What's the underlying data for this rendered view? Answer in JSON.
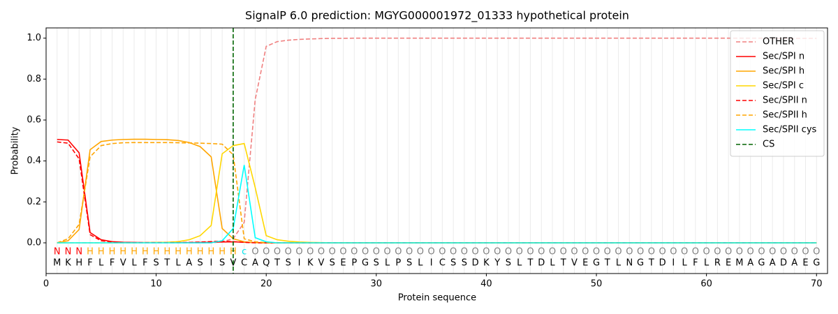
{
  "chart_data": {
    "type": "line",
    "title": "SignalP 6.0 prediction: MGYG000001972_01333 hypothetical protein",
    "x_label": "Protein sequence",
    "y_label": "Probability",
    "xlim": [
      0,
      71
    ],
    "ylim": [
      -0.15,
      1.05
    ],
    "xticks": [
      0,
      10,
      20,
      30,
      40,
      50,
      60,
      70
    ],
    "yticks": [
      {
        "value": 0,
        "label": "0.0"
      },
      {
        "value": 0.2,
        "label": "0.2"
      },
      {
        "value": 0.4,
        "label": "0.4"
      },
      {
        "value": 0.6,
        "label": "0.6"
      },
      {
        "value": 0.8,
        "label": "0.8"
      },
      {
        "value": 1,
        "label": "1.0"
      }
    ],
    "x": [
      1,
      2,
      3,
      4,
      5,
      6,
      7,
      8,
      9,
      10,
      11,
      12,
      13,
      14,
      15,
      16,
      17,
      18,
      19,
      20,
      21,
      22,
      23,
      24,
      25,
      26,
      27,
      28,
      29,
      30,
      31,
      32,
      33,
      34,
      35,
      36,
      37,
      38,
      39,
      40,
      41,
      42,
      43,
      44,
      45,
      46,
      47,
      48,
      49,
      50,
      51,
      52,
      53,
      54,
      55,
      56,
      57,
      58,
      59,
      60,
      61,
      62,
      63,
      64,
      65,
      66,
      67,
      68,
      69,
      70
    ],
    "sequence": [
      "M",
      "K",
      "H",
      "F",
      "L",
      "F",
      "V",
      "L",
      "F",
      "S",
      "T",
      "L",
      "A",
      "S",
      "I",
      "S",
      "V",
      "C",
      "A",
      "Q",
      "T",
      "S",
      "I",
      "K",
      "V",
      "S",
      "E",
      "P",
      "G",
      "S",
      "L",
      "P",
      "S",
      "L",
      "I",
      "C",
      "S",
      "S",
      "D",
      "K",
      "Y",
      "S",
      "L",
      "T",
      "D",
      "L",
      "T",
      "V",
      "E",
      "G",
      "T",
      "L",
      "N",
      "G",
      "T",
      "D",
      "I",
      "L",
      "F",
      "L",
      "R",
      "E",
      "M",
      "A",
      "G",
      "A",
      "D",
      "A",
      "E",
      "G"
    ],
    "annotations": [
      "N",
      "N",
      "N",
      "H",
      "H",
      "H",
      "H",
      "H",
      "H",
      "H",
      "H",
      "H",
      "H",
      "H",
      "H",
      "H",
      "H",
      "c",
      "O",
      "O",
      "O",
      "O",
      "O",
      "O",
      "O",
      "O",
      "O",
      "O",
      "O",
      "O",
      "O",
      "O",
      "O",
      "O",
      "O",
      "O",
      "O",
      "O",
      "O",
      "O",
      "O",
      "O",
      "O",
      "O",
      "O",
      "O",
      "O",
      "O",
      "O",
      "O",
      "O",
      "O",
      "O",
      "O",
      "O",
      "O",
      "O",
      "O",
      "O",
      "O",
      "O",
      "O",
      "O",
      "O",
      "O",
      "O",
      "O",
      "O",
      "O",
      "O"
    ],
    "annotation_colors": {
      "N": "#ff0000",
      "H": "#ffa500",
      "c": "#00e5ee",
      "O": "#808080"
    },
    "position_grid": true,
    "legend": "upper right",
    "series": [
      {
        "name": "OTHER",
        "color": "#f08080",
        "dashed": true,
        "values": [
          0,
          0,
          0,
          0,
          0,
          0,
          0,
          0,
          0,
          0,
          0,
          0,
          0,
          0,
          0,
          0.005,
          0.02,
          0.1,
          0.7,
          0.96,
          0.983,
          0.99,
          0.994,
          0.996,
          0.998,
          0.999,
          0.999,
          1,
          1,
          1,
          1,
          1,
          1,
          1,
          1,
          1,
          1,
          1,
          1,
          1,
          1,
          1,
          1,
          1,
          1,
          1,
          1,
          1,
          1,
          1,
          1,
          1,
          1,
          1,
          1,
          1,
          1,
          1,
          1,
          1,
          1,
          1,
          1,
          1,
          1,
          1,
          0.999,
          0.999,
          0.999,
          0.999
        ]
      },
      {
        "name": "Sec/SPI n",
        "color": "#ff0000",
        "dashed": false,
        "values": [
          0.505,
          0.502,
          0.44,
          0.05,
          0.015,
          0.006,
          0.003,
          0.002,
          0.001,
          0.001,
          0.001,
          0.001,
          0.001,
          0.002,
          0.003,
          0.004,
          0.005,
          0.003,
          0.001,
          0,
          0,
          0,
          0,
          0,
          0,
          0,
          0,
          0,
          0,
          0,
          0,
          0,
          0,
          0,
          0,
          0,
          0,
          0,
          0,
          0,
          0,
          0,
          0,
          0,
          0,
          0,
          0,
          0,
          0,
          0,
          0,
          0,
          0,
          0,
          0,
          0,
          0,
          0,
          0,
          0,
          0,
          0,
          0,
          0,
          0,
          0,
          0,
          0,
          0,
          0
        ]
      },
      {
        "name": "Sec/SPI h",
        "color": "#ffa500",
        "dashed": false,
        "values": [
          0,
          0.01,
          0.065,
          0.455,
          0.495,
          0.502,
          0.505,
          0.506,
          0.506,
          0.505,
          0.504,
          0.5,
          0.49,
          0.47,
          0.42,
          0.07,
          0.02,
          0.005,
          0.001,
          0,
          0,
          0,
          0,
          0,
          0,
          0,
          0,
          0,
          0,
          0,
          0,
          0,
          0,
          0,
          0,
          0,
          0,
          0,
          0,
          0,
          0,
          0,
          0,
          0,
          0,
          0,
          0,
          0,
          0,
          0,
          0,
          0,
          0,
          0,
          0,
          0,
          0,
          0,
          0,
          0,
          0,
          0,
          0,
          0,
          0,
          0,
          0,
          0,
          0,
          0
        ]
      },
      {
        "name": "Sec/SPI c",
        "color": "#ffd700",
        "dashed": false,
        "values": [
          0,
          0,
          0,
          0,
          0,
          0,
          0,
          0,
          0.001,
          0.002,
          0.003,
          0.006,
          0.015,
          0.035,
          0.085,
          0.435,
          0.475,
          0.485,
          0.27,
          0.035,
          0.015,
          0.008,
          0.004,
          0.002,
          0.001,
          0,
          0,
          0,
          0,
          0,
          0,
          0,
          0,
          0,
          0,
          0,
          0,
          0,
          0,
          0,
          0,
          0,
          0,
          0,
          0,
          0,
          0,
          0,
          0,
          0,
          0,
          0,
          0,
          0,
          0,
          0,
          0,
          0,
          0,
          0,
          0,
          0,
          0,
          0,
          0,
          0,
          0,
          0,
          0,
          0
        ]
      },
      {
        "name": "Sec/SPII n",
        "color": "#ff0000",
        "dashed": true,
        "values": [
          0.493,
          0.487,
          0.41,
          0.04,
          0.01,
          0.004,
          0.002,
          0.001,
          0.001,
          0.001,
          0.001,
          0.001,
          0.002,
          0.004,
          0.006,
          0.008,
          0.006,
          0.002,
          0,
          0,
          0,
          0,
          0,
          0,
          0,
          0,
          0,
          0,
          0,
          0,
          0,
          0,
          0,
          0,
          0,
          0,
          0,
          0,
          0,
          0,
          0,
          0,
          0,
          0,
          0,
          0,
          0,
          0,
          0,
          0,
          0,
          0,
          0,
          0,
          0,
          0,
          0,
          0,
          0,
          0,
          0,
          0,
          0,
          0,
          0,
          0,
          0,
          0,
          0,
          0
        ]
      },
      {
        "name": "Sec/SPII h",
        "color": "#ffa500",
        "dashed": true,
        "values": [
          0,
          0.02,
          0.09,
          0.42,
          0.475,
          0.485,
          0.489,
          0.49,
          0.49,
          0.49,
          0.49,
          0.489,
          0.488,
          0.487,
          0.485,
          0.482,
          0.43,
          0.02,
          0.005,
          0.001,
          0,
          0,
          0,
          0,
          0,
          0,
          0,
          0,
          0,
          0,
          0,
          0,
          0,
          0,
          0,
          0,
          0,
          0,
          0,
          0,
          0,
          0,
          0,
          0,
          0,
          0,
          0,
          0,
          0,
          0,
          0,
          0,
          0,
          0,
          0,
          0,
          0,
          0,
          0,
          0,
          0,
          0,
          0,
          0,
          0,
          0,
          0,
          0,
          0,
          0
        ]
      },
      {
        "name": "Sec/SPII cys",
        "color": "#00ffff",
        "dashed": false,
        "values": [
          0,
          0,
          0,
          0,
          0,
          0,
          0,
          0,
          0,
          0,
          0,
          0,
          0,
          0,
          0,
          0.01,
          0.07,
          0.38,
          0.025,
          0.005,
          0,
          0,
          0,
          0,
          0,
          0,
          0,
          0,
          0,
          0,
          0,
          0,
          0,
          0,
          0,
          0,
          0,
          0,
          0,
          0,
          0,
          0,
          0,
          0,
          0,
          0,
          0,
          0,
          0,
          0,
          0,
          0,
          0,
          0,
          0,
          0,
          0,
          0,
          0,
          0,
          0,
          0,
          0,
          0,
          0,
          0,
          0,
          0,
          0,
          0
        ]
      }
    ],
    "cs": {
      "name": "CS",
      "x": 17,
      "color": "#006400"
    }
  }
}
